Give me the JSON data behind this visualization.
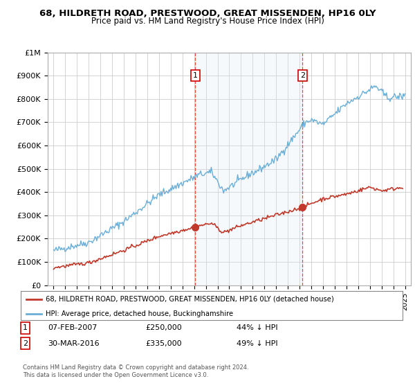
{
  "title": "68, HILDRETH ROAD, PRESTWOOD, GREAT MISSENDEN, HP16 0LY",
  "subtitle": "Price paid vs. HM Land Registry's House Price Index (HPI)",
  "hpi_color": "#6baed6",
  "price_color": "#c0392b",
  "marker_color": "#c0392b",
  "vline_color": "#e74c3c",
  "background_color": "#ffffff",
  "plot_bg_color": "#ffffff",
  "shading_color": "#dce8f5",
  "grid_color": "#cccccc",
  "ylim": [
    0,
    1000000
  ],
  "yticks": [
    0,
    100000,
    200000,
    300000,
    400000,
    500000,
    600000,
    700000,
    800000,
    900000,
    1000000
  ],
  "ytick_labels": [
    "£0",
    "£100K",
    "£200K",
    "£300K",
    "£400K",
    "£500K",
    "£600K",
    "£700K",
    "£800K",
    "£900K",
    "£1M"
  ],
  "legend_line1": "68, HILDRETH ROAD, PRESTWOOD, GREAT MISSENDEN, HP16 0LY (detached house)",
  "legend_line2": "HPI: Average price, detached house, Buckinghamshire",
  "sale1_date": "07-FEB-2007",
  "sale1_price": "£250,000",
  "sale1_hpi": "44% ↓ HPI",
  "sale2_date": "30-MAR-2016",
  "sale2_price": "£335,000",
  "sale2_hpi": "49% ↓ HPI",
  "footer": "Contains HM Land Registry data © Crown copyright and database right 2024.\nThis data is licensed under the Open Government Licence v3.0.",
  "sale1_x": 2007.1,
  "sale2_x": 2016.25,
  "sale1_y": 250000,
  "sale2_y": 335000,
  "xlim_left": 1994.5,
  "xlim_right": 2025.5
}
